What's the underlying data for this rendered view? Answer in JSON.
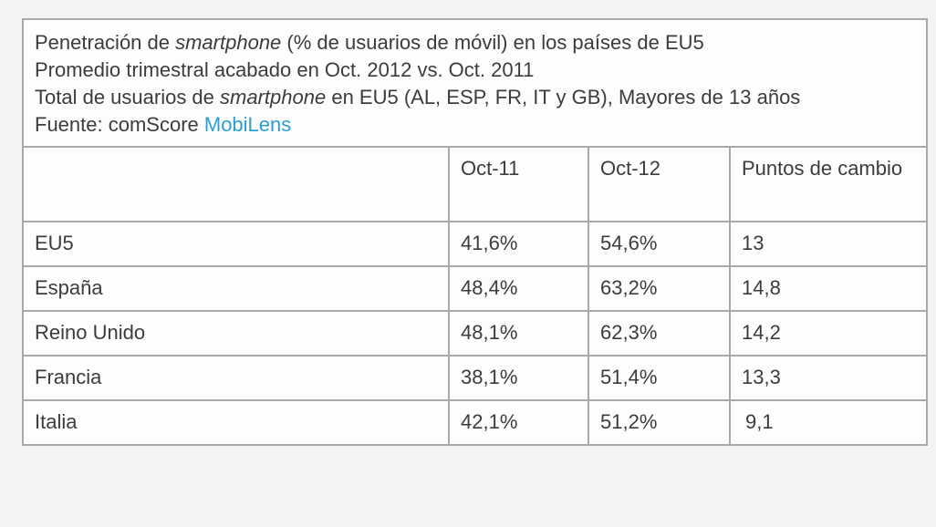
{
  "caption": {
    "line1_pre": "Penetración de ",
    "line1_em": "smartphone",
    "line1_post": " (% de usuarios de móvil) en los países de EU5",
    "line2": "Promedio trimestral acabado en Oct. 2012 vs. Oct. 2011",
    "line3_pre": "Total de usuarios de ",
    "line3_em": "smartphone",
    "line3_post": " en EU5 (AL, ESP, FR, IT y GB), Mayores de 13 años",
    "source_label": "Fuente: comScore ",
    "source_link": "MobiLens"
  },
  "chart_data": {
    "type": "table",
    "title": "Penetración de smartphone (% de usuarios de móvil) en los países de EU5",
    "columns": [
      "",
      "Oct-11",
      "Oct-12",
      "Puntos de cambio"
    ],
    "rows": [
      {
        "label": "EU5",
        "oct11": "41,6%",
        "oct12": "54,6%",
        "change": "13"
      },
      {
        "label": "España",
        "oct11": "48,4%",
        "oct12": "63,2%",
        "change": "14,8"
      },
      {
        "label": "Reino Unido",
        "oct11": "48,1%",
        "oct12": "62,3%",
        "change": "14,2"
      },
      {
        "label": "Francia",
        "oct11": "38,1%",
        "oct12": "51,4%",
        "change": "13,3"
      },
      {
        "label": "Italia",
        "oct11": "42,1%",
        "oct12": "51,2%",
        "change": "9,1"
      }
    ]
  },
  "colors": {
    "border": "#a9a9a9",
    "text": "#3c3c3c",
    "link": "#2a9fd6"
  }
}
